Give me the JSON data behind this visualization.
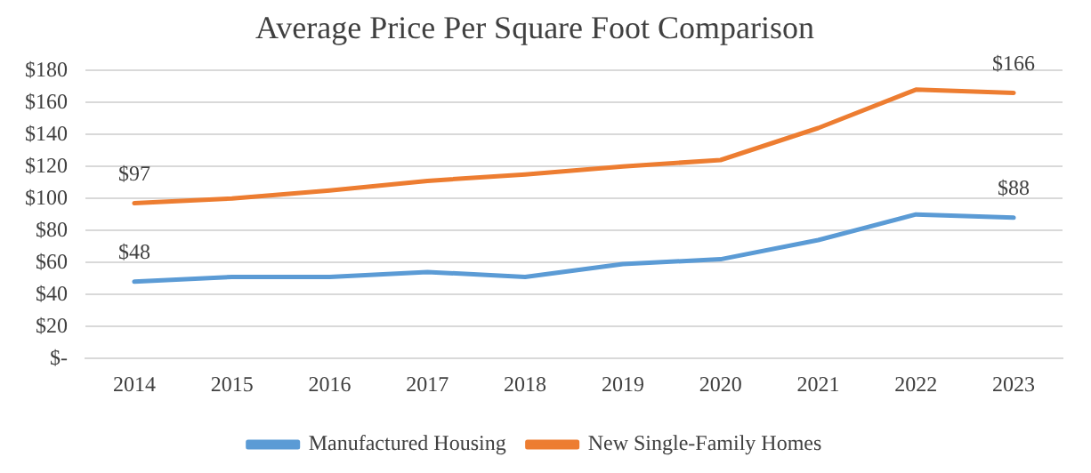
{
  "chart_data": {
    "type": "line",
    "title": "Average Price Per Square Foot Comparison",
    "categories": [
      "2014",
      "2015",
      "2016",
      "2017",
      "2018",
      "2019",
      "2020",
      "2021",
      "2022",
      "2023"
    ],
    "series": [
      {
        "name": "Manufactured Housing",
        "color": "#5b9bd5",
        "values": [
          48,
          51,
          51,
          54,
          51,
          59,
          62,
          74,
          90,
          88
        ],
        "value_labels": [
          "$48",
          null,
          null,
          null,
          null,
          null,
          null,
          null,
          null,
          "$88"
        ]
      },
      {
        "name": "New Single-Family Homes",
        "color": "#ed7d31",
        "values": [
          97,
          100,
          105,
          111,
          115,
          120,
          124,
          144,
          168,
          166
        ],
        "value_labels": [
          "$97",
          null,
          null,
          null,
          null,
          null,
          null,
          null,
          null,
          "$166"
        ]
      }
    ],
    "ylim": [
      0,
      180
    ],
    "yticks": [
      {
        "value": 0,
        "label": "$-"
      },
      {
        "value": 20,
        "label": "$20"
      },
      {
        "value": 40,
        "label": "$40"
      },
      {
        "value": 60,
        "label": "$60"
      },
      {
        "value": 80,
        "label": "$80"
      },
      {
        "value": 100,
        "label": "$100"
      },
      {
        "value": 120,
        "label": "$120"
      },
      {
        "value": 140,
        "label": "$140"
      },
      {
        "value": 160,
        "label": "$160"
      },
      {
        "value": 180,
        "label": "$180"
      }
    ],
    "grid": "y",
    "legend": "bottom",
    "marker": "none",
    "line_style": "solid"
  }
}
